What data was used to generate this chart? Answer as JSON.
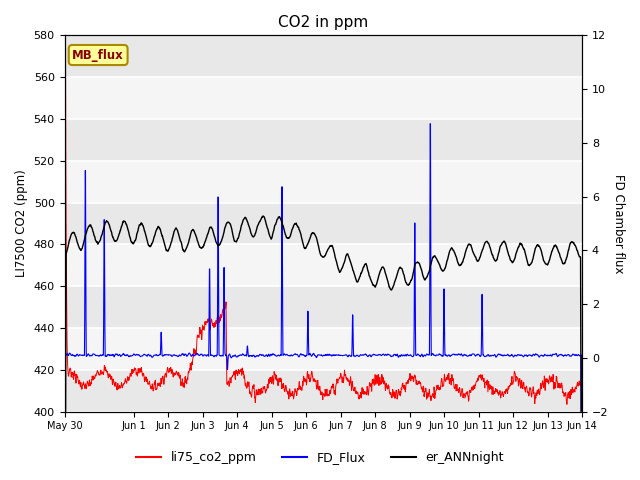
{
  "title": "CO2 in ppm",
  "ylabel_left": "LI7500 CO2 (ppm)",
  "ylabel_right": "FD Chamber flux",
  "ylim_left": [
    400,
    580
  ],
  "ylim_right": [
    -2,
    12
  ],
  "yticks_left": [
    400,
    420,
    440,
    460,
    480,
    500,
    520,
    540,
    560,
    580
  ],
  "yticks_right": [
    -2,
    0,
    2,
    4,
    6,
    8,
    10,
    12
  ],
  "legend_labels": [
    "li75_co2_ppm",
    "FD_Flux",
    "er_ANNnight"
  ],
  "legend_colors": [
    "red",
    "blue",
    "black"
  ],
  "mb_flux_label": "MB_flux",
  "mb_flux_color": "#ffff99",
  "mb_flux_border": "#aa8800",
  "bg_dark": "#e8e8e8",
  "bg_light": "#f5f5f5",
  "title_fontsize": 11,
  "n_points": 2000,
  "seed": 7
}
